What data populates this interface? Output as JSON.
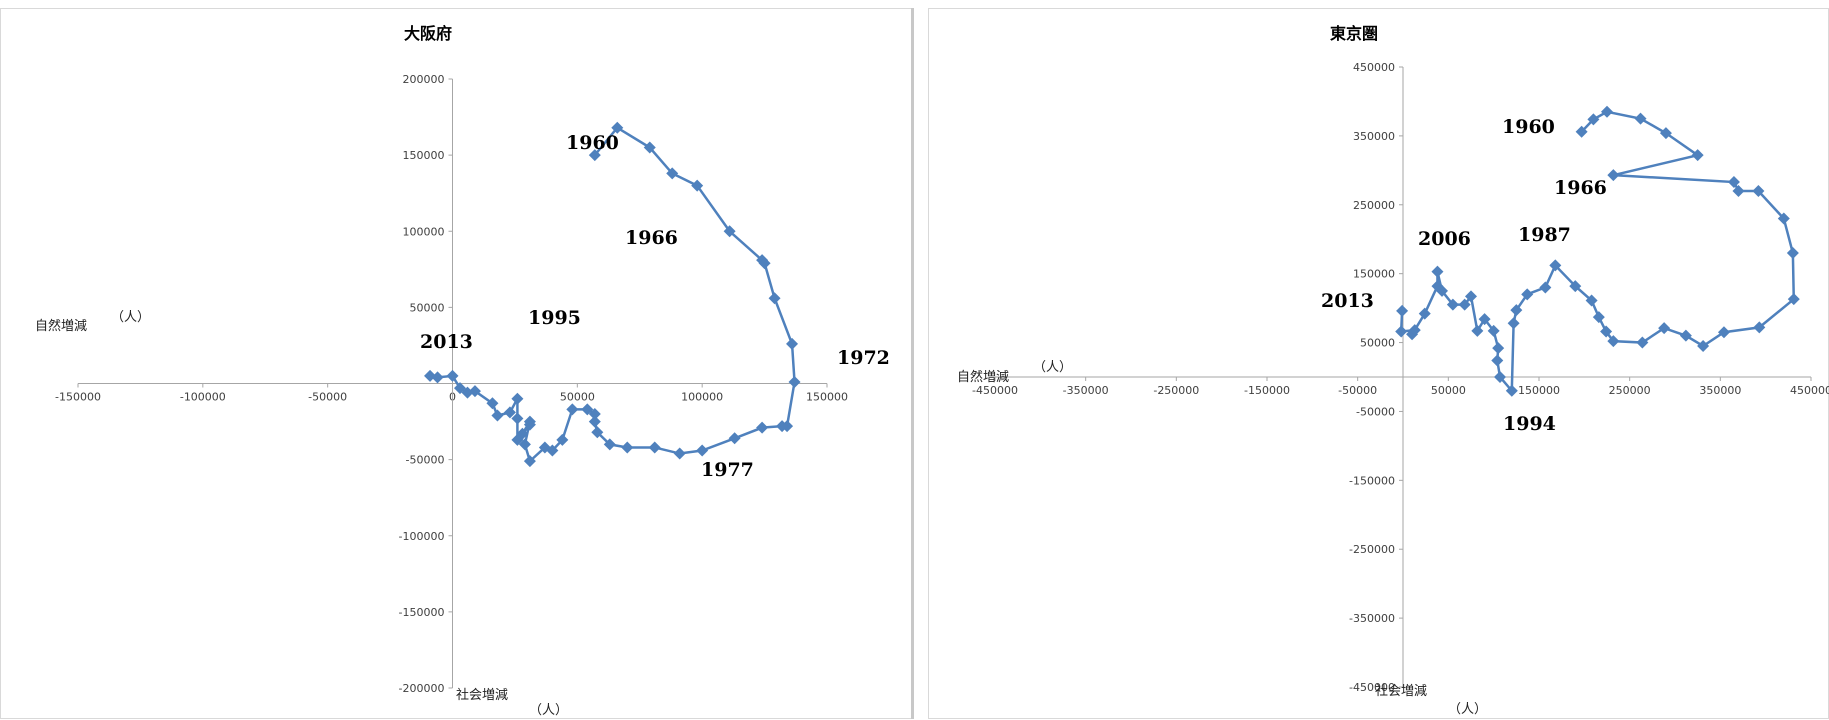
{
  "chart_data": [
    {
      "type": "scatter",
      "title": "大阪府",
      "xlabel": "自然増減",
      "ylabel": "社会増減",
      "unit_label": "（人）",
      "xlim": [
        -150000,
        150000
      ],
      "ylim": [
        -200000,
        200000
      ],
      "x_ticks": [
        -150000,
        -100000,
        -50000,
        0,
        50000,
        100000,
        150000
      ],
      "y_ticks": [
        -200000,
        -150000,
        -100000,
        -50000,
        50000,
        100000,
        150000,
        200000
      ],
      "grid": false,
      "marker": "diamond",
      "color": "#4f81bd",
      "series": [
        {
          "x": [
            57000,
            66000,
            79000,
            88000,
            98000,
            111000,
            124000,
            125000,
            129000,
            136000,
            137000,
            134000,
            132000,
            124000,
            113000,
            100000,
            91000,
            81000,
            70000,
            63000,
            58000,
            57000,
            57000,
            54000,
            48000,
            44000,
            40000,
            37000,
            31000,
            29000,
            31000,
            28000,
            31000,
            26000,
            26000,
            26000,
            23000,
            18000,
            16000,
            9000,
            6000,
            3000,
            0,
            -6000,
            -9000
          ],
          "y": [
            150000,
            168000,
            155000,
            138000,
            130000,
            100000,
            81000,
            79000,
            56000,
            26000,
            1000,
            -28000,
            -28000,
            -29000,
            -36000,
            -44000,
            -46000,
            -42000,
            -42000,
            -40000,
            -32000,
            -25000,
            -20000,
            -17000,
            -17000,
            -37000,
            -44000,
            -42000,
            -51000,
            -40000,
            -25000,
            -33000,
            -27000,
            -37000,
            -23000,
            -10000,
            -19000,
            -21000,
            -13000,
            -5000,
            -6000,
            -3000,
            5000,
            4000,
            5000
          ]
        }
      ],
      "annotations": [
        "1960",
        "1966",
        "1972",
        "1977",
        "1995",
        "2013"
      ]
    },
    {
      "type": "scatter",
      "title": "東京圏",
      "xlabel": "自然増減",
      "ylabel": "社会増減",
      "unit_label": "（人）",
      "xlim": [
        -450000,
        450000
      ],
      "ylim": [
        -450000,
        450000
      ],
      "x_ticks": [
        -450000,
        -350000,
        -250000,
        -150000,
        -50000,
        50000,
        150000,
        250000,
        350000,
        450000
      ],
      "y_ticks": [
        -450000,
        -350000,
        -250000,
        -150000,
        -50000,
        50000,
        150000,
        250000,
        350000,
        450000
      ],
      "grid": false,
      "marker": "diamond",
      "color": "#4f81bd",
      "series": [
        {
          "x": [
            197000,
            210000,
            225000,
            262000,
            290000,
            325000,
            232000,
            365000,
            370000,
            392000,
            420000,
            430000,
            431000,
            393000,
            354000,
            331000,
            312000,
            288000,
            264000,
            232000,
            224000,
            216000,
            208000,
            190000,
            168000,
            157000,
            137000,
            125000,
            122000,
            120000,
            107000,
            104000,
            105000,
            100000,
            90000,
            82000,
            75000,
            68000,
            55000,
            43000,
            38000,
            38000,
            24000,
            10000,
            13000,
            -2000,
            -1000
          ],
          "y": [
            356000,
            374000,
            385000,
            375000,
            354000,
            322000,
            293000,
            283000,
            270000,
            270000,
            230000,
            180000,
            113000,
            72000,
            65000,
            45000,
            60000,
            71000,
            50000,
            52000,
            66000,
            87000,
            111000,
            132000,
            162000,
            130000,
            120000,
            97000,
            78000,
            -20000,
            0,
            24000,
            42000,
            67000,
            84000,
            67000,
            117000,
            105000,
            105000,
            125000,
            153000,
            132000,
            92000,
            62000,
            68000,
            66000,
            96000
          ]
        }
      ],
      "annotations": [
        "1960",
        "1966",
        "1987",
        "1994",
        "2006",
        "2013"
      ]
    }
  ]
}
